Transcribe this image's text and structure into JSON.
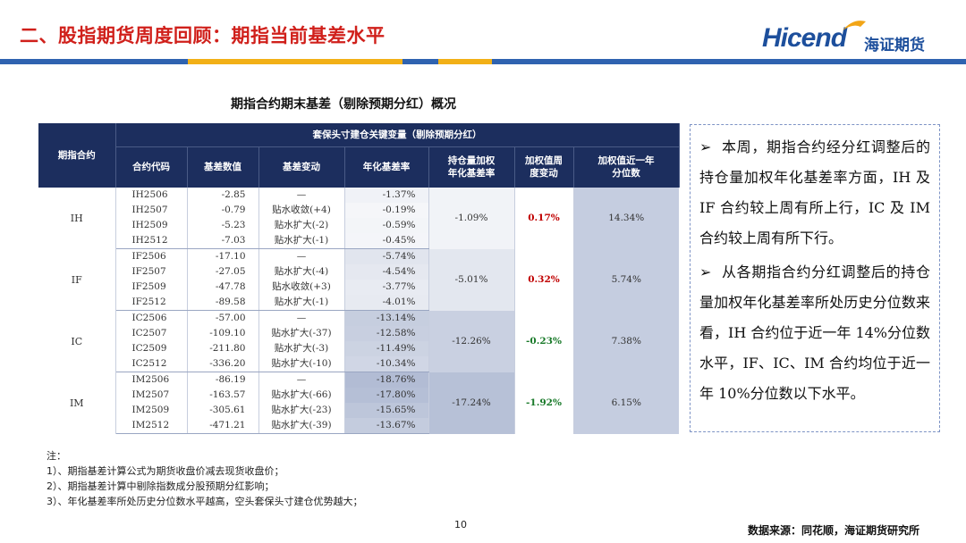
{
  "header": {
    "title": "二、股指期货周度回顾：期指当前基差水平",
    "logo_en": "Hicend",
    "logo_cn": "海证期货",
    "bar_colors": [
      "#2f63b0",
      "#f2b017",
      "#2f63b0",
      "#f2b017",
      "#2f63b0"
    ]
  },
  "table": {
    "title": "期指合约期末基差（剔除预期分红）概况",
    "header_contract": "期指合约",
    "header_group": "套保头寸建仓关键变量（剔除预期分红）",
    "columns": [
      "合约代码",
      "基差数值",
      "基差变动",
      "年化基差率",
      "持仓量加权\n年化基差率",
      "加权值周\n度变动",
      "加权值近一年\n分位数"
    ],
    "groups": [
      {
        "name": "IH",
        "weighted_rate": "-1.09%",
        "weekly_change": "0.17%",
        "change_dir": "up",
        "percentile": "14.34%",
        "rows": [
          {
            "code": "IH2506",
            "basis": "-2.85",
            "change": "—",
            "annual": "-1.37%"
          },
          {
            "code": "IH2507",
            "basis": "-0.79",
            "change": "贴水收敛(+4)",
            "annual": "-0.19%"
          },
          {
            "code": "IH2509",
            "basis": "-5.23",
            "change": "贴水扩大(-2)",
            "annual": "-0.59%"
          },
          {
            "code": "IH2512",
            "basis": "-7.03",
            "change": "贴水扩大(-1)",
            "annual": "-0.45%"
          }
        ]
      },
      {
        "name": "IF",
        "weighted_rate": "-5.01%",
        "weekly_change": "0.32%",
        "change_dir": "up",
        "percentile": "5.74%",
        "rows": [
          {
            "code": "IF2506",
            "basis": "-17.10",
            "change": "—",
            "annual": "-5.74%"
          },
          {
            "code": "IF2507",
            "basis": "-27.05",
            "change": "贴水扩大(-4)",
            "annual": "-4.54%"
          },
          {
            "code": "IF2509",
            "basis": "-47.78",
            "change": "贴水收敛(+3)",
            "annual": "-3.77%"
          },
          {
            "code": "IF2512",
            "basis": "-89.58",
            "change": "贴水扩大(-1)",
            "annual": "-4.01%"
          }
        ]
      },
      {
        "name": "IC",
        "weighted_rate": "-12.26%",
        "weekly_change": "-0.23%",
        "change_dir": "down",
        "percentile": "7.38%",
        "rows": [
          {
            "code": "IC2506",
            "basis": "-57.00",
            "change": "—",
            "annual": "-13.14%"
          },
          {
            "code": "IC2507",
            "basis": "-109.10",
            "change": "贴水扩大(-37)",
            "annual": "-12.58%"
          },
          {
            "code": "IC2509",
            "basis": "-211.80",
            "change": "贴水扩大(-3)",
            "annual": "-11.49%"
          },
          {
            "code": "IC2512",
            "basis": "-336.20",
            "change": "贴水扩大(-10)",
            "annual": "-10.34%"
          }
        ]
      },
      {
        "name": "IM",
        "weighted_rate": "-17.24%",
        "weekly_change": "-1.92%",
        "change_dir": "down",
        "percentile": "6.15%",
        "rows": [
          {
            "code": "IM2506",
            "basis": "-86.19",
            "change": "—",
            "annual": "-18.76%"
          },
          {
            "code": "IM2507",
            "basis": "-163.57",
            "change": "贴水扩大(-66)",
            "annual": "-17.80%"
          },
          {
            "code": "IM2509",
            "basis": "-305.61",
            "change": "贴水扩大(-23)",
            "annual": "-15.65%"
          },
          {
            "code": "IM2512",
            "basis": "-471.21",
            "change": "贴水扩大(-39)",
            "annual": "-13.67%"
          }
        ]
      }
    ]
  },
  "callout": {
    "p1": "本周，期指合约经分红调整后的持仓量加权年化基差率方面，IH 及 IF 合约较上周有所上行，IC 及 IM 合约较上周有所下行。",
    "p2": "从各期指合约分红调整后的持仓量加权年化基差率所处历史分位数来看，IH 合约位于近一年 14%分位数水平，IF、IC、IM 合约均位于近一年 10%分位数以下水平。",
    "bullet": "➢"
  },
  "notes": {
    "heading": "注：",
    "items": [
      "1）、期指基差计算公式为期货收盘价减去现货收盘价；",
      "2）、期指基差计算中剔除指数成分股预期分红影响；",
      "3）、年化基差率所处历史分位数水平越高，空头套保头寸建仓优势越大；"
    ]
  },
  "footer": {
    "page": "10",
    "source": "数据来源：同花顺，海证期货研究所"
  }
}
